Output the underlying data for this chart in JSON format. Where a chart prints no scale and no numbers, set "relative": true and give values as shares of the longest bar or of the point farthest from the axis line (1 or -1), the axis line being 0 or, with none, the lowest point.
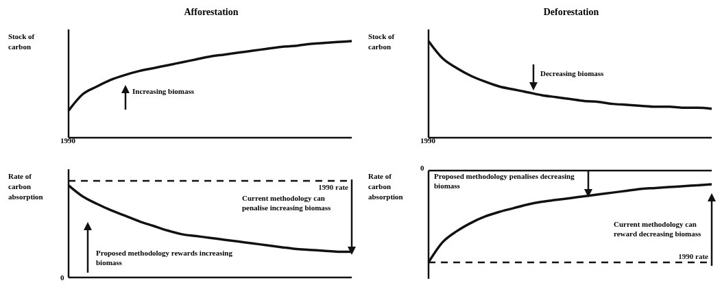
{
  "chart_data": [
    {
      "type": "line",
      "title": "Afforestation",
      "ylabel": "Stock of carbon",
      "relative": true,
      "categories": [
        null,
        null,
        null,
        null,
        null,
        null,
        null,
        null,
        null,
        null,
        null,
        null,
        null,
        null,
        null,
        null,
        null,
        null,
        null,
        null,
        null
      ],
      "color": "#111111",
      "values": [
        0.28,
        0.45,
        0.53,
        0.6,
        0.65,
        0.69,
        0.72,
        0.75,
        0.78,
        0.81,
        0.84,
        0.86,
        0.88,
        0.9,
        0.92,
        0.94,
        0.95,
        0.97,
        0.98,
        0.99,
        1
      ],
      "annotations": [
        "Increasing biomass",
        "1990"
      ]
    },
    {
      "type": "line",
      "title": "Deforestation",
      "ylabel": "Stock of carbon",
      "relative": true,
      "categories": [
        null,
        null,
        null,
        null,
        null,
        null,
        null,
        null,
        null,
        null,
        null,
        null,
        null,
        null,
        null,
        null,
        null,
        null,
        null,
        null,
        null
      ],
      "color": "#111111",
      "values": [
        1,
        0.82,
        0.72,
        0.64,
        0.58,
        0.53,
        0.5,
        0.47,
        0.44,
        0.42,
        0.4,
        0.38,
        0.37,
        0.35,
        0.34,
        0.33,
        0.32,
        0.32,
        0.31,
        0.31,
        0.3
      ],
      "annotations": [
        "Decreasing biomass",
        "1990"
      ]
    },
    {
      "type": "line",
      "ylabel": "Rate of carbon absorption",
      "relative": true,
      "categories": [
        null,
        null,
        null,
        null,
        null,
        null,
        null,
        null,
        null,
        null,
        null,
        null,
        null,
        null,
        null,
        null,
        null,
        null,
        null,
        null,
        null
      ],
      "color": "#111111",
      "values": [
        1,
        0.88,
        0.8,
        0.73,
        0.67,
        0.61,
        0.56,
        0.51,
        0.47,
        0.45,
        0.43,
        0.41,
        0.39,
        0.37,
        0.35,
        0.33,
        0.31,
        0.3,
        0.29,
        0.28,
        0.28
      ],
      "ref_lines": [
        {
          "axis": "y",
          "value": 1.05,
          "label": "1990 rate",
          "color": "#111111",
          "line_style": "dashed"
        }
      ],
      "annotations": [
        "Proposed methodology rewards increasing biomass",
        "Current methodology can penalise increasing biomass",
        "0"
      ]
    },
    {
      "type": "line",
      "ylabel": "Rate of carbon absorption",
      "relative": true,
      "categories": [
        null,
        null,
        null,
        null,
        null,
        null,
        null,
        null,
        null,
        null,
        null,
        null,
        null,
        null,
        null,
        null,
        null,
        null,
        null,
        null,
        null
      ],
      "color": "#111111",
      "values": [
        -1,
        -0.78,
        -0.66,
        -0.57,
        -0.5,
        -0.45,
        -0.41,
        -0.37,
        -0.34,
        -0.32,
        -0.3,
        -0.28,
        -0.26,
        -0.24,
        -0.22,
        -0.2,
        -0.19,
        -0.18,
        -0.17,
        -0.16,
        -0.15
      ],
      "ref_lines": [
        {
          "axis": "y",
          "value": -1,
          "label": "1990 rate",
          "color": "#111111",
          "line_style": "dashed"
        }
      ],
      "annotations": [
        "Proposed methodology penalises decreasing biomass",
        "Current methodology can reward decreasing biomass",
        "0"
      ]
    }
  ]
}
